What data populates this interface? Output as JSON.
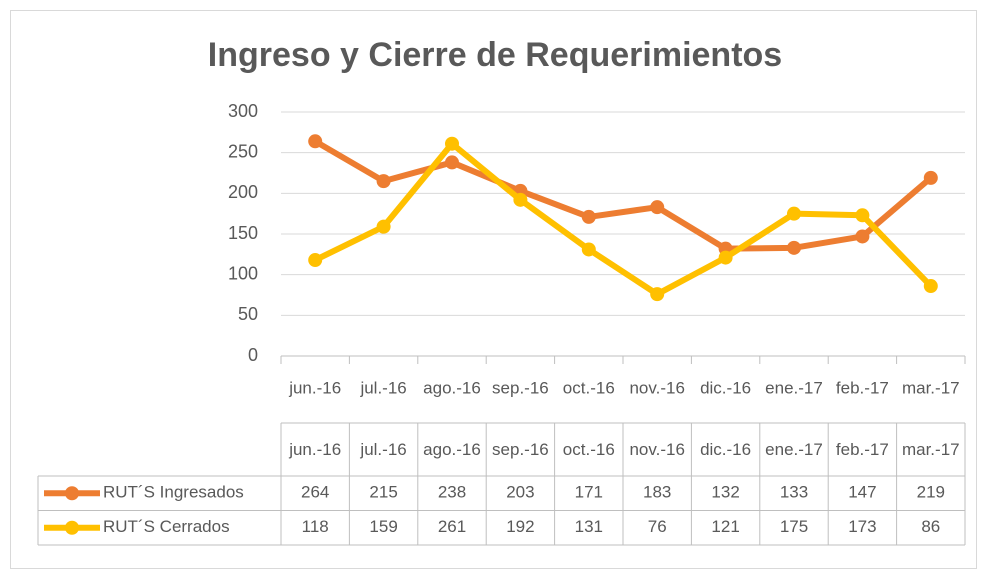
{
  "chart_data": {
    "type": "line",
    "title": "Ingreso y Cierre de Requerimientos",
    "categories": [
      "jun.-16",
      "jul.-16",
      "ago.-16",
      "sep.-16",
      "oct.-16",
      "nov.-16",
      "dic.-16",
      "ene.-17",
      "feb.-17",
      "mar.-17"
    ],
    "series": [
      {
        "name": "RUT´S Ingresados",
        "color": "#ed7d31",
        "values": [
          264,
          215,
          238,
          203,
          171,
          183,
          132,
          133,
          147,
          219
        ]
      },
      {
        "name": "RUT´S Cerrados",
        "color": "#ffc000",
        "values": [
          118,
          159,
          261,
          192,
          131,
          76,
          121,
          175,
          173,
          86
        ]
      }
    ],
    "ylim": [
      0,
      300
    ],
    "yticks": [
      0,
      50,
      100,
      150,
      200,
      250,
      300
    ],
    "grid": true,
    "data_table": true
  }
}
